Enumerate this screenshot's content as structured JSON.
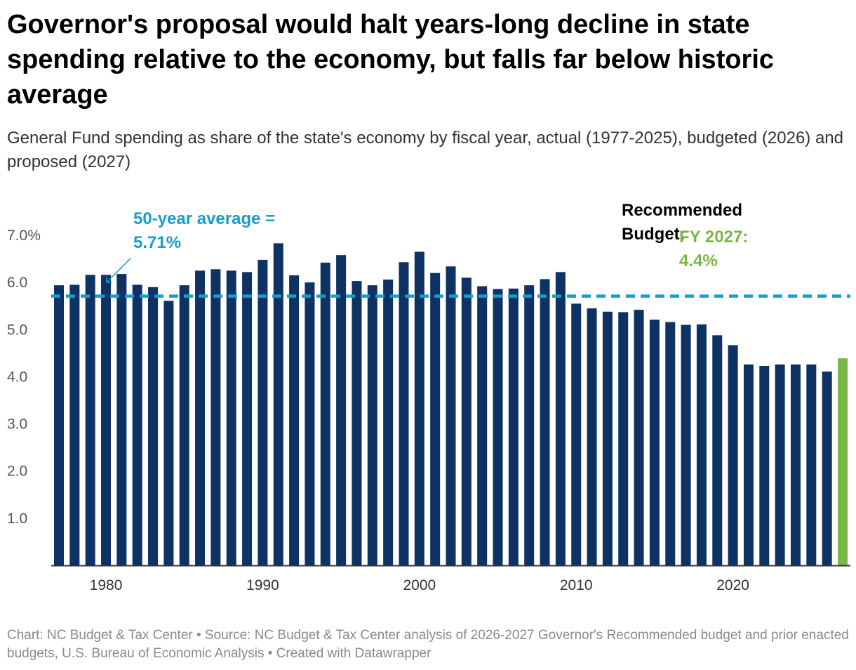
{
  "header": {
    "title": "Governor's proposal would halt years-long decline in state spending relative to the economy, but falls far below historic average",
    "subtitle": "General Fund spending as share of the state's economy by fiscal year, actual (1977-2025), budgeted (2026) and proposed (2027)"
  },
  "footer": {
    "credit": "Chart: NC Budget & Tax Center • Source: NC Budget & Tax Center analysis of 2026-2027 Governor's Recommended budget and prior enacted budgets, U.S. Bureau of Economic Analysis • Created with Datawrapper"
  },
  "colors": {
    "actual_bar": "#0d3263",
    "proposed_bar": "#7ab648",
    "average_line": "#1a9dc9",
    "axis": "#333333"
  },
  "chart_data": {
    "type": "bar",
    "x": [
      1977,
      1978,
      1979,
      1980,
      1981,
      1982,
      1983,
      1984,
      1985,
      1986,
      1987,
      1988,
      1989,
      1990,
      1991,
      1992,
      1993,
      1994,
      1995,
      1996,
      1997,
      1998,
      1999,
      2000,
      2001,
      2002,
      2003,
      2004,
      2005,
      2006,
      2007,
      2008,
      2009,
      2010,
      2011,
      2012,
      2013,
      2014,
      2015,
      2016,
      2017,
      2018,
      2019,
      2020,
      2021,
      2022,
      2023,
      2024,
      2025,
      2026,
      2027
    ],
    "values": [
      5.94,
      5.95,
      6.16,
      6.16,
      6.18,
      5.95,
      5.9,
      5.61,
      5.94,
      6.25,
      6.28,
      6.25,
      6.22,
      6.48,
      6.83,
      6.15,
      6.0,
      6.42,
      6.58,
      6.03,
      5.94,
      6.06,
      6.43,
      6.65,
      6.2,
      6.34,
      6.1,
      5.92,
      5.86,
      5.87,
      5.94,
      6.07,
      6.22,
      5.55,
      5.45,
      5.38,
      5.37,
      5.42,
      5.21,
      5.16,
      5.1,
      5.11,
      4.88,
      4.67,
      4.26,
      4.23,
      4.26,
      4.26,
      4.26,
      4.11,
      4.39
    ],
    "highlight_index": 50,
    "ylim": [
      0,
      7
    ],
    "yticks": [
      "1.0",
      "2.0",
      "3.0",
      "4.0",
      "5.0",
      "6.0",
      "7.0%"
    ],
    "ytick_values": [
      1,
      2,
      3,
      4,
      5,
      6,
      7
    ],
    "xticks": [
      "1980",
      "1990",
      "2000",
      "2010",
      "2020"
    ],
    "xtick_values": [
      1980,
      1990,
      2000,
      2010,
      2020
    ],
    "reference_line": {
      "value": 5.71,
      "label_line1": "50-year average =",
      "label_line2": "5.71%"
    },
    "annotation": {
      "recommended_line1": "Recommended",
      "recommended_line2": "Budget:",
      "fy_line1": "FY 2027:",
      "fy_line2": "4.4%"
    },
    "grid": false
  }
}
